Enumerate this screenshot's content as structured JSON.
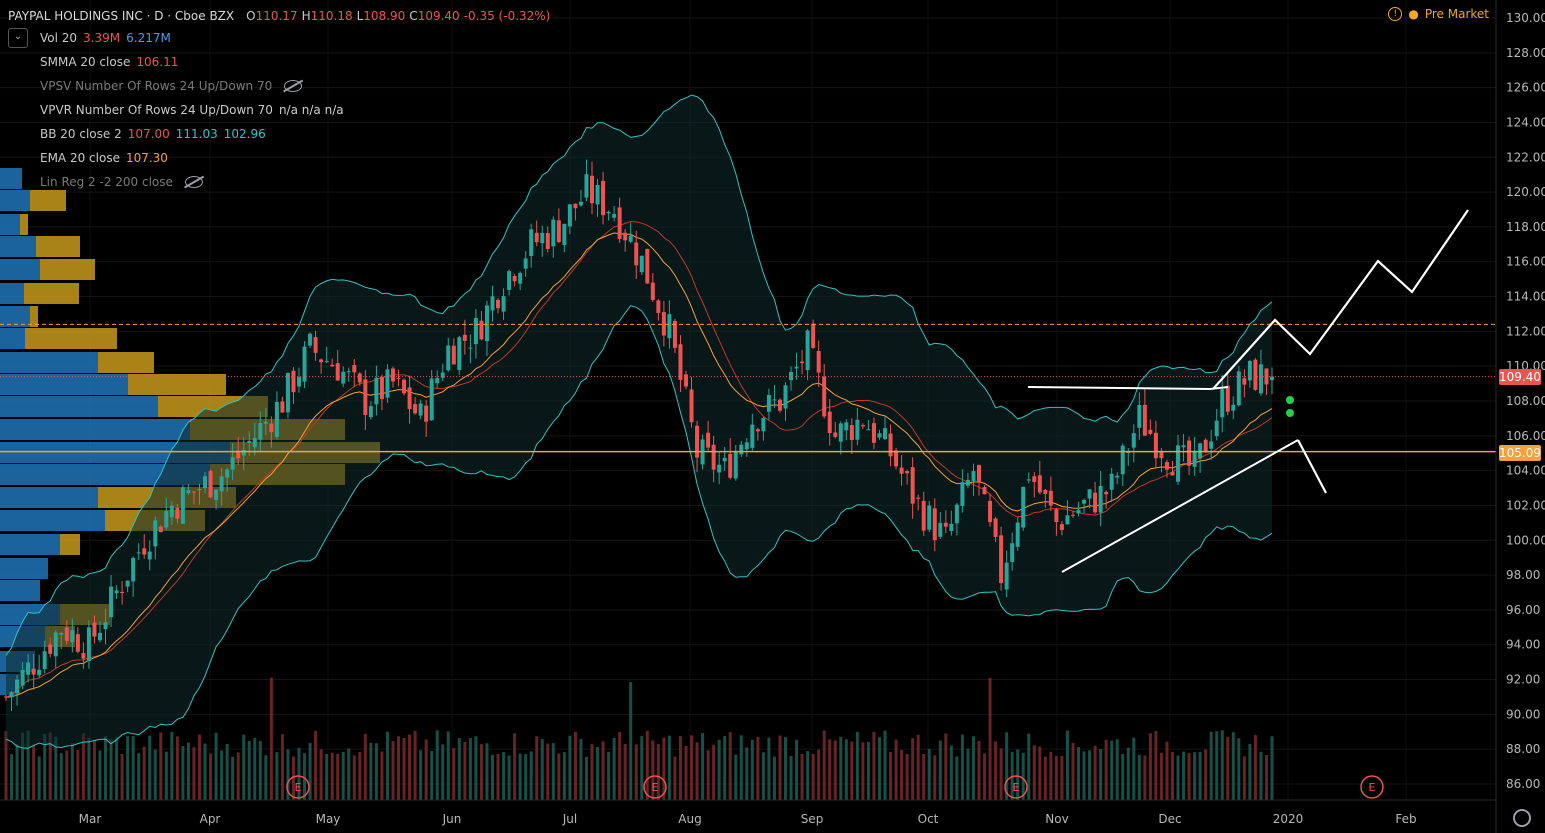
{
  "header": {
    "symbol": "PAYPAL HOLDINGS INC · D · Cboe BZX",
    "ohlc": [
      {
        "k": "O",
        "v": "110.17"
      },
      {
        "k": "H",
        "v": "110.18"
      },
      {
        "k": "L",
        "v": "108.90"
      },
      {
        "k": "C",
        "v": "109.40"
      },
      {
        "k": "",
        "v": "-0.35 (-0.32%)"
      }
    ],
    "premarket": "Pre Market"
  },
  "indicators": [
    {
      "name": "Vol 20",
      "values": [
        "3.39M",
        "6.217M"
      ],
      "colors": [
        "#ef5350",
        "#4f9be8"
      ],
      "hidden": false
    },
    {
      "name": "SMMA 20 close",
      "values": [
        "106.11"
      ],
      "colors": [
        "#ef5350"
      ],
      "hidden": false
    },
    {
      "name": "VPSV Number Of Rows 24 Up/Down 70",
      "values": [],
      "colors": [],
      "hidden": true
    },
    {
      "name": "VPVR Number Of Rows 24 Up/Down 70",
      "values": [
        "n/a n/a n/a"
      ],
      "colors": [
        "#d0d0d0"
      ],
      "hidden": false
    },
    {
      "name": "BB 20 close 2",
      "values": [
        "107.00",
        "111.03",
        "102.96"
      ],
      "colors": [
        "#ef5350",
        "#2ec4c4",
        "#2ec4c4"
      ],
      "hidden": false
    },
    {
      "name": "EMA 20 close",
      "values": [
        "107.30"
      ],
      "colors": [
        "#f5a03a"
      ],
      "hidden": false
    },
    {
      "name": "Lin Reg 2 -2 200 close",
      "values": [],
      "colors": [],
      "hidden": true
    }
  ],
  "price_axis": [
    "130.00",
    "128.00",
    "126.00",
    "124.00",
    "122.00",
    "120.00",
    "118.00",
    "116.00",
    "114.00",
    "112.00",
    "110.00",
    "108.00",
    "106.00",
    "104.00",
    "102.00",
    "100.00",
    "98.00",
    "96.00",
    "94.00",
    "92.00",
    "90.00",
    "88.00",
    "86.00"
  ],
  "time_axis": [
    "Mar",
    "Apr",
    "May",
    "Jun",
    "Jul",
    "Aug",
    "Sep",
    "Oct",
    "Nov",
    "Dec",
    "2020",
    "Feb"
  ],
  "price_tags": {
    "last": "109.40",
    "level": "105.09"
  },
  "earnings_marker": "E",
  "colors": {
    "up": "#26a69a",
    "down": "#ef5350",
    "bb": "#2ec4c4",
    "ema": "#f5a03a",
    "level": "#f5a03a",
    "vpvr_up": "#1e74b8",
    "vpvr_down": "#c79a1c"
  },
  "chart_data": {
    "type": "candlestick",
    "y_range": [
      85,
      130
    ],
    "x": [
      "2019-02-11",
      "2019-02-18",
      "2019-02-25",
      "2019-03-04",
      "2019-03-11",
      "2019-03-18",
      "2019-03-25",
      "2019-04-01",
      "2019-04-08",
      "2019-04-15",
      "2019-04-22",
      "2019-04-29",
      "2019-05-06",
      "2019-05-13",
      "2019-05-20",
      "2019-05-27",
      "2019-06-03",
      "2019-06-10",
      "2019-06-17",
      "2019-06-24",
      "2019-07-01",
      "2019-07-08",
      "2019-07-15",
      "2019-07-22",
      "2019-07-29",
      "2019-08-05",
      "2019-08-12",
      "2019-08-19",
      "2019-08-26",
      "2019-09-02",
      "2019-09-09",
      "2019-09-16",
      "2019-09-23",
      "2019-09-30",
      "2019-10-07",
      "2019-10-14",
      "2019-10-21",
      "2019-10-28",
      "2019-11-04",
      "2019-11-11",
      "2019-11-18",
      "2019-11-25",
      "2019-12-02",
      "2019-12-09",
      "2019-12-16",
      "2019-12-23"
    ],
    "close": [
      91,
      93,
      95,
      94,
      97,
      100,
      102,
      103,
      104,
      106,
      108,
      111,
      110,
      108,
      109,
      107,
      111,
      112,
      115,
      117,
      118,
      120,
      119,
      116,
      112,
      105,
      104,
      107,
      108,
      111,
      106,
      107,
      105,
      102,
      100,
      104,
      98,
      104,
      101,
      102,
      103,
      107,
      105,
      104,
      108,
      109.4
    ],
    "levels": {
      "horizontal_dashed": 112.4,
      "horizontal_solid": 105.09,
      "last": 109.4
    }
  }
}
